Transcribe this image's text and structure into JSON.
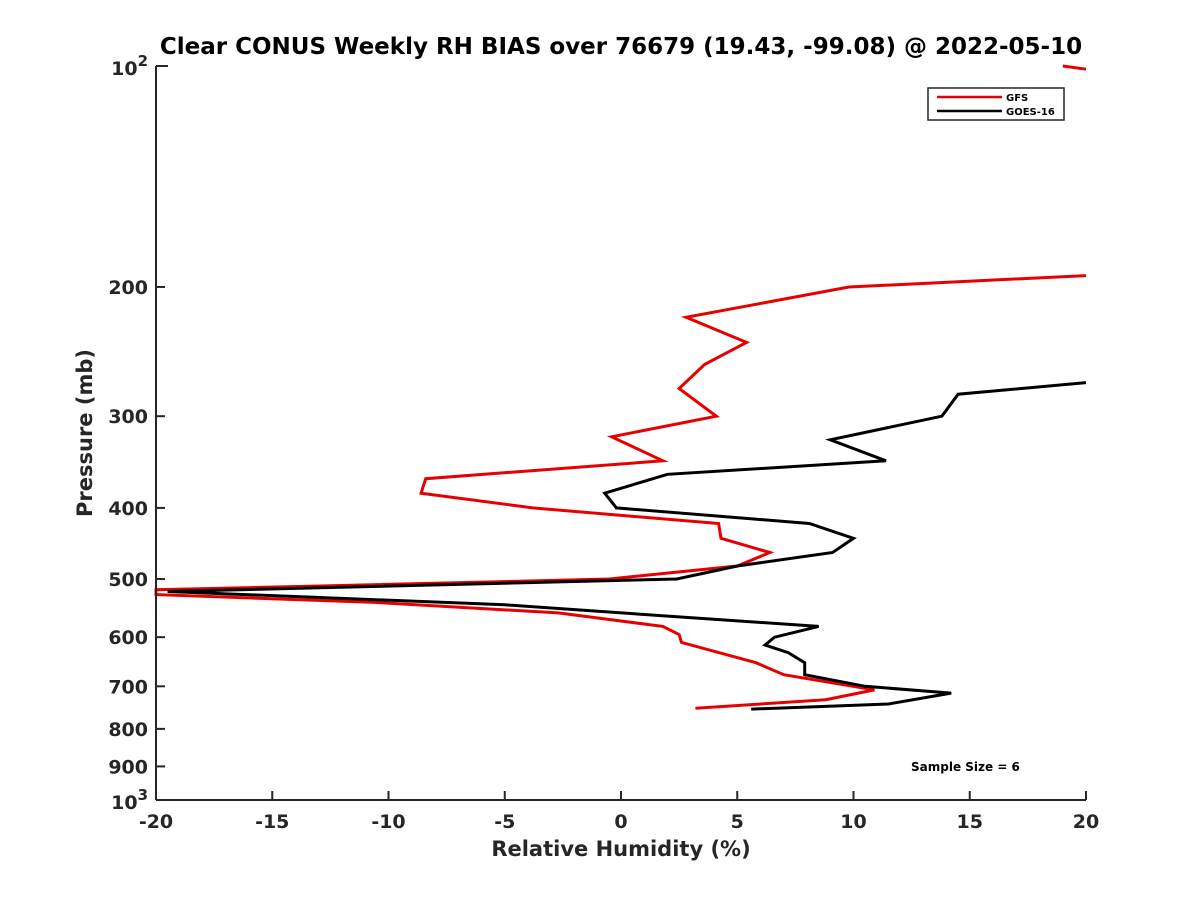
{
  "chart_data": {
    "type": "line",
    "title": "Clear CONUS Weekly RH BIAS over 76679 (19.43, -99.08) @ 2022-05-10",
    "xlabel": "Relative Humidity (%)",
    "ylabel": "Pressure (mb)",
    "xlim": [
      -20,
      20
    ],
    "ylim": [
      100,
      1000
    ],
    "y_scale": "log",
    "y_reversed": true,
    "grid": false,
    "legend_position": "top-right",
    "x_ticks": [
      -20,
      -15,
      -10,
      -5,
      0,
      5,
      10,
      15,
      20
    ],
    "x_tick_labels": [
      "-20",
      "-15",
      "-10",
      "-5",
      "0",
      "5",
      "10",
      "15",
      "20"
    ],
    "y_tick_labels": [
      {
        "value": 200,
        "label": "200"
      },
      {
        "value": 300,
        "label": "300"
      },
      {
        "value": 400,
        "label": "400"
      },
      {
        "value": 500,
        "label": "500"
      },
      {
        "value": 600,
        "label": "600"
      },
      {
        "value": 700,
        "label": "700"
      },
      {
        "value": 800,
        "label": "800"
      },
      {
        "value": 900,
        "label": "900"
      }
    ],
    "y_minor_ticks": [
      300,
      400,
      500,
      600,
      700,
      800,
      900
    ],
    "y_end_labels": [
      {
        "value": 100,
        "base": "10",
        "exp": "2"
      },
      {
        "value": 1000,
        "base": "10",
        "exp": "3"
      }
    ],
    "series": [
      {
        "name": "GFS",
        "color": "#e60000",
        "points": [
          [
            19,
            100
          ],
          [
            20,
            101
          ],
          [
            20,
            193
          ],
          [
            9.8,
            200
          ],
          [
            2.8,
            220
          ],
          [
            5.4,
            238
          ],
          [
            3.6,
            255
          ],
          [
            2.5,
            275
          ],
          [
            4.1,
            300
          ],
          [
            -0.4,
            320
          ],
          [
            1.8,
            345
          ],
          [
            -8.4,
            365
          ],
          [
            -8.6,
            382
          ],
          [
            -3.8,
            400
          ],
          [
            4.2,
            420
          ],
          [
            4.3,
            440
          ],
          [
            6.4,
            460
          ],
          [
            5.0,
            480
          ],
          [
            -0.5,
            500
          ],
          [
            -11.8,
            510
          ],
          [
            -20,
            517
          ],
          [
            -20,
            525
          ],
          [
            -10.6,
            538
          ],
          [
            -2.7,
            556
          ],
          [
            1.8,
            580
          ],
          [
            2.5,
            595
          ],
          [
            2.6,
            610
          ],
          [
            5.8,
            650
          ],
          [
            7.0,
            675
          ],
          [
            10.9,
            708
          ],
          [
            8.8,
            730
          ],
          [
            3.2,
            750
          ]
        ]
      },
      {
        "name": "GOES-16",
        "color": "#000000",
        "points": [
          [
            20,
            270
          ],
          [
            14.5,
            280
          ],
          [
            13.8,
            300
          ],
          [
            9.0,
            323
          ],
          [
            11.4,
            345
          ],
          [
            2.0,
            360
          ],
          [
            -0.7,
            382
          ],
          [
            -0.2,
            400
          ],
          [
            8.1,
            420
          ],
          [
            10.0,
            440
          ],
          [
            9.1,
            460
          ],
          [
            5.0,
            480
          ],
          [
            2.4,
            500
          ],
          [
            -19.5,
            520
          ],
          [
            -5.0,
            542
          ],
          [
            3.2,
            565
          ],
          [
            8.5,
            580
          ],
          [
            6.6,
            600
          ],
          [
            6.2,
            615
          ],
          [
            7.2,
            630
          ],
          [
            7.9,
            650
          ],
          [
            7.9,
            675
          ],
          [
            10.5,
            700
          ],
          [
            14.2,
            715
          ],
          [
            11.5,
            740
          ],
          [
            5.6,
            752
          ]
        ]
      }
    ],
    "annotations": [
      "Sample Size = 6"
    ]
  }
}
